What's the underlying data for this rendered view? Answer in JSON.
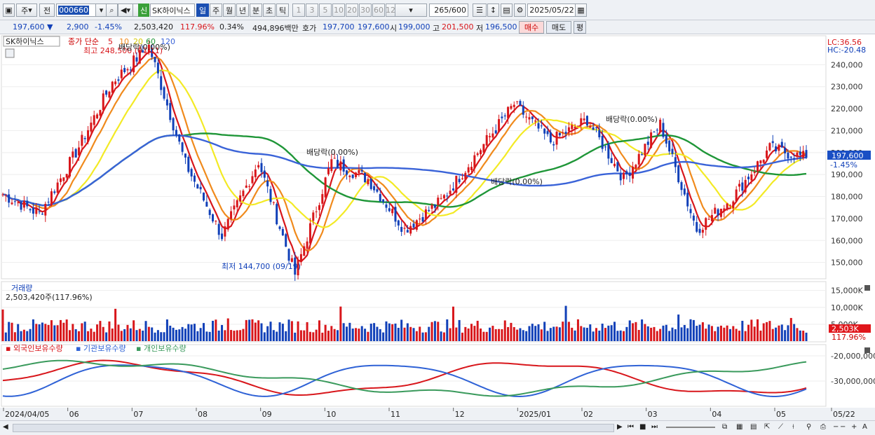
{
  "toolbar": {
    "type_label": "주",
    "prev_label": "전",
    "code_value": "000660",
    "company_badge": "신",
    "company_name": "SK하이닉스",
    "period_tabs": [
      "일",
      "주",
      "월",
      "년",
      "분",
      "초",
      "틱"
    ],
    "active_period": "일",
    "interval_buttons": [
      "1",
      "3",
      "5",
      "10",
      "20",
      "30",
      "60",
      "120"
    ],
    "count_value": "265",
    "count_total": "/600",
    "date_value": "2025/05/22"
  },
  "quote": {
    "price": "197,600",
    "change_arrow": "▼",
    "change": "2,900",
    "change_pct": "-1.45%",
    "volume": "2,503,420",
    "volume_ratio": "117.96%",
    "turnover": "0.34%",
    "amount": "494,896백만",
    "bid_label": "호가",
    "bid": "197,700",
    "ask": "197,600",
    "open_label": "시",
    "open": "199,000",
    "high_label": "고",
    "high": "201,500",
    "low_label": "저",
    "low": "196,500",
    "buy_label": "매수",
    "sell_label": "매도",
    "eval_label": "평"
  },
  "legend": {
    "stock_name": "SK하이닉스",
    "ma_prefix": "종가 단순",
    "ma_periods": [
      "5",
      "10",
      "20",
      "60",
      "120"
    ],
    "max_label": "최고 248,500 (07/11)",
    "min_label": "최저 144,700 (09/19)",
    "lc_label": "LC:36.56",
    "hc_label": "HC:-20.48"
  },
  "annotations": [
    "배당락(0.00%)",
    "배당락(0.00%)",
    "배당락(0.00%)",
    "배당락(0.00%)"
  ],
  "price_axis": {
    "ticks": [
      "240,000",
      "230,000",
      "220,000",
      "210,000",
      "200,000",
      "190,000",
      "180,000",
      "170,000",
      "160,000",
      "150,000"
    ],
    "current_tag": "197,600",
    "current_change": "-1.45%"
  },
  "volume_panel": {
    "title": "거래량",
    "value": "2,503,420주(117.96%)",
    "ticks": [
      "15,000K",
      "10,000K",
      "5,000K"
    ],
    "current_tag": "2,503K",
    "current_pct": "117.96%"
  },
  "holdings_panel": {
    "series_names": [
      "외국인보유수량",
      "기관보유수량",
      "개인보유수량"
    ],
    "ticks": [
      "-20,000,000",
      "-30,000,000"
    ]
  },
  "x_axis": [
    "2024/04/05",
    "06",
    "07",
    "08",
    "09",
    "10",
    "11",
    "12",
    "2025/01",
    "02",
    "03",
    "04",
    "05",
    "05/22"
  ],
  "colors": {
    "up": "#d8161b",
    "down": "#1140b8",
    "ma5": "#d8161b",
    "ma10": "#f08a1c",
    "ma20": "#f3ea25",
    "ma60": "#1f9638",
    "ma120": "#3a63d8",
    "foreign": "#d8161b",
    "institution": "#2f62d6",
    "individual": "#3a9a5c"
  },
  "chart_data": {
    "type": "candlestick",
    "price_points": [
      {
        "x": "2024/04/05",
        "y": 181000
      },
      {
        "x": "2024/05",
        "y": 172000
      },
      {
        "x": "2024/06",
        "y": 200000
      },
      {
        "x": "2024/06-mid",
        "y": 232000
      },
      {
        "x": "2024/07/11",
        "y": 248500
      },
      {
        "x": "2024/07-end",
        "y": 195000
      },
      {
        "x": "2024/08",
        "y": 162000
      },
      {
        "x": "2024/08-mid",
        "y": 196000
      },
      {
        "x": "2024/09/19",
        "y": 144700
      },
      {
        "x": "2024/10",
        "y": 196000
      },
      {
        "x": "2024/11",
        "y": 188000
      },
      {
        "x": "2024/12",
        "y": 165000
      },
      {
        "x": "2024/12-end",
        "y": 178000
      },
      {
        "x": "2025/01",
        "y": 200000
      },
      {
        "x": "2025/01-end",
        "y": 222000
      },
      {
        "x": "2025/02",
        "y": 205000
      },
      {
        "x": "2025/02-mid",
        "y": 215000
      },
      {
        "x": "2025/03",
        "y": 188000
      },
      {
        "x": "2025/03-mid",
        "y": 213000
      },
      {
        "x": "2025/04",
        "y": 165000
      },
      {
        "x": "2025/04-end",
        "y": 180000
      },
      {
        "x": "2025/05",
        "y": 202000
      },
      {
        "x": "2025/05/22",
        "y": 197600
      }
    ],
    "y_range": [
      140000,
      250000
    ],
    "volume_range": [
      0,
      17000000
    ],
    "last_volume": 2503420
  }
}
